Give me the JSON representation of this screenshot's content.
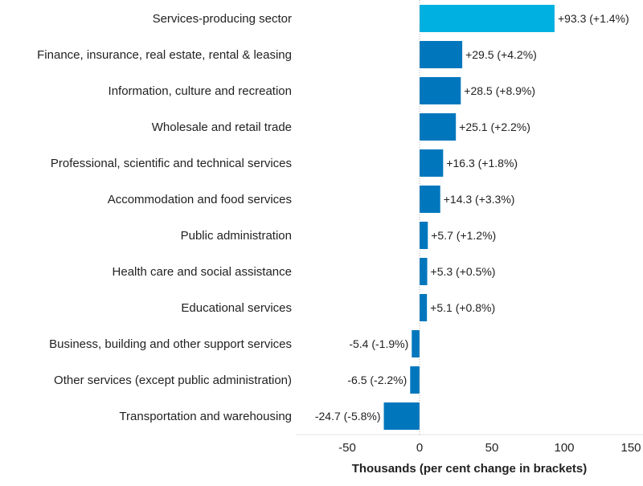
{
  "chart_data": {
    "type": "bar",
    "orientation": "horizontal",
    "categories": [
      "Services-producing sector",
      "Finance, insurance, real estate, rental & leasing",
      "Information, culture and recreation",
      "Wholesale and retail trade",
      "Professional, scientific and technical services",
      "Accommodation and food services",
      "Public administration",
      "Health care and social assistance",
      "Educational services",
      "Business, building and other support services",
      "Other services (except public administration)",
      "Transportation and warehousing"
    ],
    "values": [
      93.3,
      29.5,
      28.5,
      25.1,
      16.3,
      14.3,
      5.7,
      5.3,
      5.1,
      -5.4,
      -6.5,
      -24.7
    ],
    "data_labels": [
      "+93.3 (+1.4%)",
      "+29.5 (+4.2%)",
      "+28.5 (+8.9%)",
      "+25.1 (+2.2%)",
      "+16.3 (+1.8%)",
      "+14.3 (+3.3%)",
      "+5.7 (+1.2%)",
      "+5.3 (+0.5%)",
      "+5.1 (+0.8%)",
      "-5.4 (-1.9%)",
      "-6.5 (-2.2%)",
      "-24.7 (-5.8%)"
    ],
    "xlabel": "Thousands (per cent change in brackets)",
    "xlim": [
      -85,
      150
    ],
    "xticks": [
      -50,
      0,
      50,
      100,
      150
    ],
    "grid": false,
    "colors": {
      "highlight": "#00b0e0",
      "default": "#0077bd",
      "zero_line": "#aaaaaa"
    }
  }
}
